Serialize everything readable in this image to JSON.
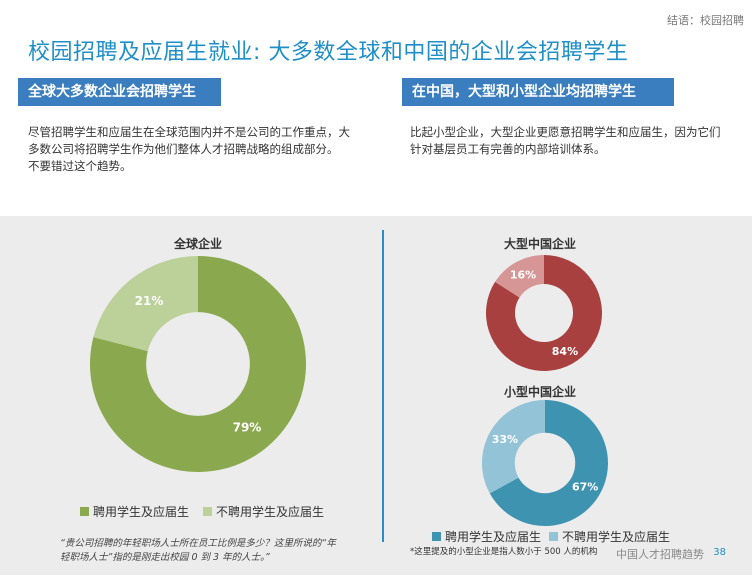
{
  "header": {
    "breadcrumb": "结语：校园招聘",
    "title": "校园招聘及应届生就业: 大多数全球和中国的企业会招聘学生"
  },
  "sections": {
    "left": {
      "heading": "全球大多数企业会招聘学生",
      "lines": [
        "尽管招聘学生和应届生在全球范围内并不是公司的工作重点，大",
        "多数公司将招聘学生作为他们整体人才招聘战略的组成部分。",
        "不要错过这个趋势。"
      ]
    },
    "right": {
      "heading": "在中国，大型和小型企业均招聘学生",
      "lines": [
        "比起小型企业，大型企业更愿意招聘学生和应届生，因为它们",
        "针对基层员工有完善的内部培训体系。"
      ]
    }
  },
  "chart_data": [
    {
      "type": "pie",
      "title": "全球企业",
      "categories": [
        "聘用学生及应届生",
        "不聘用学生及应届生"
      ],
      "values": [
        79,
        21
      ],
      "labels": [
        "79%",
        "21%"
      ],
      "colors": [
        "#8aa84e",
        "#bcd19a"
      ],
      "legend": "bottom"
    },
    {
      "type": "pie",
      "title": "大型中国企业",
      "categories": [
        "聘用学生及应届生",
        "不聘用学生及应届生"
      ],
      "values": [
        84,
        16
      ],
      "labels": [
        "84%",
        "16%"
      ],
      "colors": [
        "#a8403f",
        "#d69696"
      ]
    },
    {
      "type": "pie",
      "title": "小型中国企业",
      "categories": [
        "聘用学生及应届生",
        "不聘用学生及应届生"
      ],
      "values": [
        67,
        33
      ],
      "labels": [
        "67%",
        "33%"
      ],
      "colors": [
        "#3d93b0",
        "#92c3d6"
      ],
      "legend": "bottom"
    }
  ],
  "legends": {
    "global": [
      "聘用学生及应届生",
      "不聘用学生及应届生"
    ],
    "china": [
      "聘用学生及应届生",
      "不聘用学生及应届生"
    ]
  },
  "footnotes": {
    "left": [
      "“贵公司招聘的年轻职场人士所在员工比例是多少？这里所说的“年",
      "轻职场人士”指的是刚走出校园 0 到 3 年的人士。”"
    ],
    "right": "*这里提及的小型企业是指人数小于 500 人的机构"
  },
  "footer": {
    "text": "中国人才招聘趋势",
    "page": "38"
  }
}
